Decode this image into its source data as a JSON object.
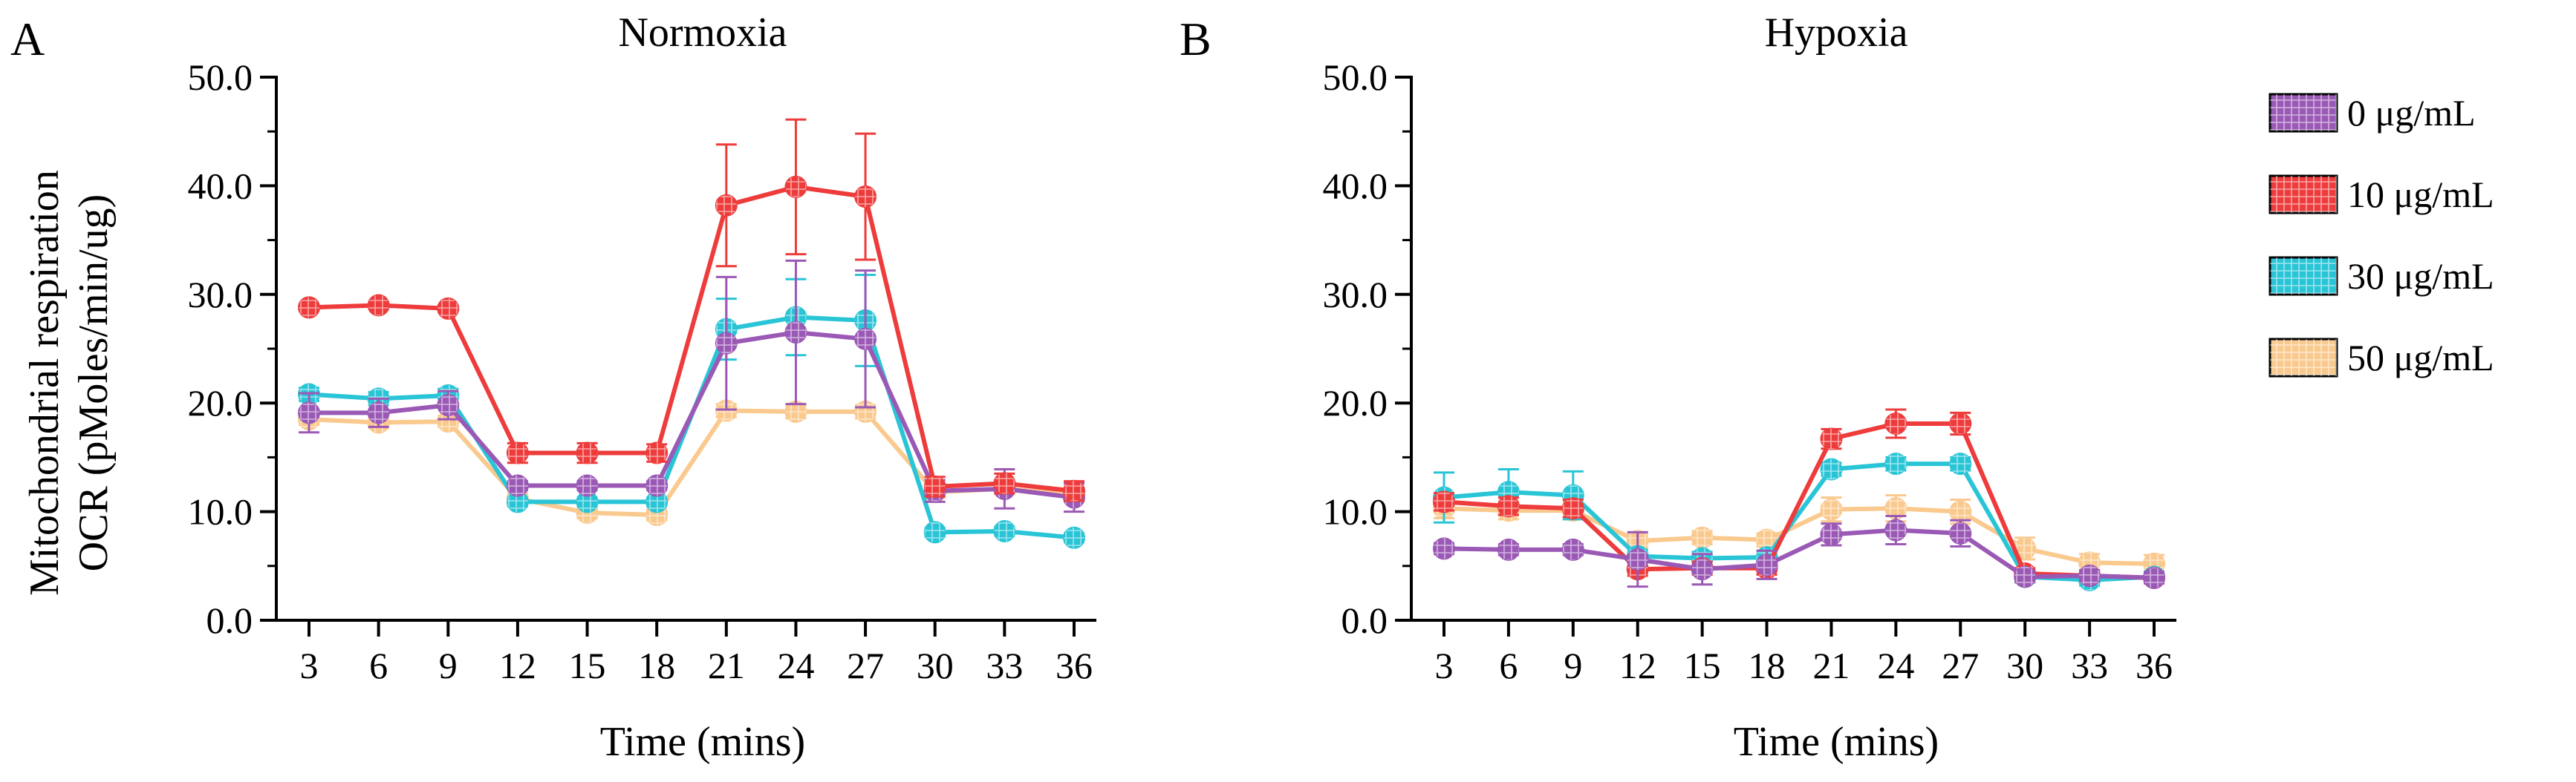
{
  "figure": {
    "y_axis_title_line1": "Mitochondrial respiration",
    "y_axis_title_line2": "OCR (pMoles/min/ug)"
  },
  "legend": {
    "items": [
      {
        "label": "0 μg/mL",
        "color": "#9B59B6"
      },
      {
        "label": "10 μg/mL",
        "color": "#EE3B3B"
      },
      {
        "label": "30 μg/mL",
        "color": "#29C5D6"
      },
      {
        "label": "50 μg/mL",
        "color": "#FAC98E"
      }
    ]
  },
  "chart_data": [
    {
      "panel": "A",
      "type": "line",
      "title": "Normoxia",
      "xlabel": "Time (mins)",
      "ylabel": "Mitochondrial respiration OCR (pMoles/min/ug)",
      "x": [
        3,
        6,
        9,
        12,
        15,
        18,
        21,
        24,
        27,
        30,
        33,
        36
      ],
      "ylim": [
        0,
        50
      ],
      "yticks": [
        0,
        10,
        20,
        30,
        40,
        50
      ],
      "ytick_labels": [
        "0.0",
        "10.0",
        "20.0",
        "30.0",
        "40.0",
        "50.0"
      ],
      "series": [
        {
          "name": "50 μg/mL",
          "color": "#FAC98E",
          "values": [
            18.5,
            18.2,
            18.3,
            11.2,
            9.9,
            9.7,
            19.3,
            19.2,
            19.2,
            11.8,
            12.1,
            11.6
          ],
          "errors": [
            0.5,
            0.5,
            0.5,
            0.5,
            0.5,
            0.5,
            0.6,
            0.6,
            0.6,
            0.5,
            0.5,
            0.5
          ]
        },
        {
          "name": "30 μg/mL",
          "color": "#29C5D6",
          "values": [
            20.8,
            20.4,
            20.7,
            10.9,
            10.9,
            10.9,
            26.8,
            27.9,
            27.6,
            8.1,
            8.2,
            7.6
          ],
          "errors": [
            0.6,
            0.6,
            0.6,
            0.4,
            0.4,
            0.4,
            2.8,
            3.5,
            4.2,
            0.4,
            0.4,
            0.4
          ]
        },
        {
          "name": "0 μg/mL",
          "color": "#9B59B6",
          "values": [
            19.1,
            19.1,
            19.8,
            12.4,
            12.4,
            12.4,
            25.5,
            26.5,
            25.9,
            11.9,
            12.1,
            11.3
          ],
          "errors": [
            1.8,
            1.3,
            1.3,
            0.4,
            0.4,
            0.4,
            6.1,
            6.6,
            6.3,
            1.0,
            1.8,
            1.3
          ]
        },
        {
          "name": "10 μg/mL",
          "color": "#EE3B3B",
          "values": [
            28.8,
            29.0,
            28.7,
            15.4,
            15.4,
            15.4,
            38.2,
            39.9,
            39.0,
            12.3,
            12.6,
            11.9
          ],
          "errors": [
            0.3,
            0.3,
            0.3,
            0.9,
            0.9,
            0.8,
            5.6,
            6.2,
            5.8,
            0.9,
            0.9,
            0.9
          ]
        }
      ]
    },
    {
      "panel": "B",
      "type": "line",
      "title": "Hypoxia",
      "xlabel": "Time (mins)",
      "ylabel": "",
      "x": [
        3,
        6,
        9,
        12,
        15,
        18,
        21,
        24,
        27,
        30,
        33,
        36
      ],
      "ylim": [
        0,
        50
      ],
      "yticks": [
        0,
        10,
        20,
        30,
        40,
        50
      ],
      "ytick_labels": [
        "0.0",
        "10.0",
        "20.0",
        "30.0",
        "40.0",
        "50.0"
      ],
      "series": [
        {
          "name": "50 μg/mL",
          "color": "#FAC98E",
          "values": [
            10.3,
            10.1,
            10.1,
            7.3,
            7.6,
            7.4,
            10.2,
            10.3,
            10.0,
            6.6,
            5.3,
            5.2
          ],
          "errors": [
            0.9,
            0.8,
            0.8,
            0.6,
            0.6,
            0.6,
            1.1,
            1.2,
            1.1,
            1.0,
            0.8,
            0.8
          ]
        },
        {
          "name": "30 μg/mL",
          "color": "#29C5D6",
          "values": [
            11.3,
            11.8,
            11.5,
            5.9,
            5.7,
            5.8,
            13.9,
            14.4,
            14.4,
            4.0,
            3.7,
            4.0
          ],
          "errors": [
            2.3,
            2.1,
            2.2,
            0.6,
            0.6,
            0.6,
            0.6,
            0.6,
            0.6,
            0.5,
            0.5,
            0.5
          ]
        },
        {
          "name": "10 μg/mL",
          "color": "#EE3B3B",
          "values": [
            10.9,
            10.5,
            10.3,
            4.7,
            4.8,
            4.8,
            16.7,
            18.1,
            18.1,
            4.3,
            4.1,
            3.9
          ],
          "errors": [
            0.8,
            0.8,
            0.8,
            0.6,
            0.6,
            0.6,
            0.9,
            1.3,
            1.0,
            0.5,
            0.5,
            0.5
          ]
        },
        {
          "name": "0 μg/mL",
          "color": "#9B59B6",
          "values": [
            6.6,
            6.5,
            6.5,
            5.6,
            4.7,
            5.1,
            7.9,
            8.3,
            8.0,
            4.0,
            4.1,
            3.9
          ],
          "errors": [
            0.5,
            0.5,
            0.5,
            2.5,
            1.4,
            1.3,
            1.0,
            1.3,
            1.2,
            0.5,
            0.5,
            0.5
          ]
        }
      ]
    }
  ]
}
